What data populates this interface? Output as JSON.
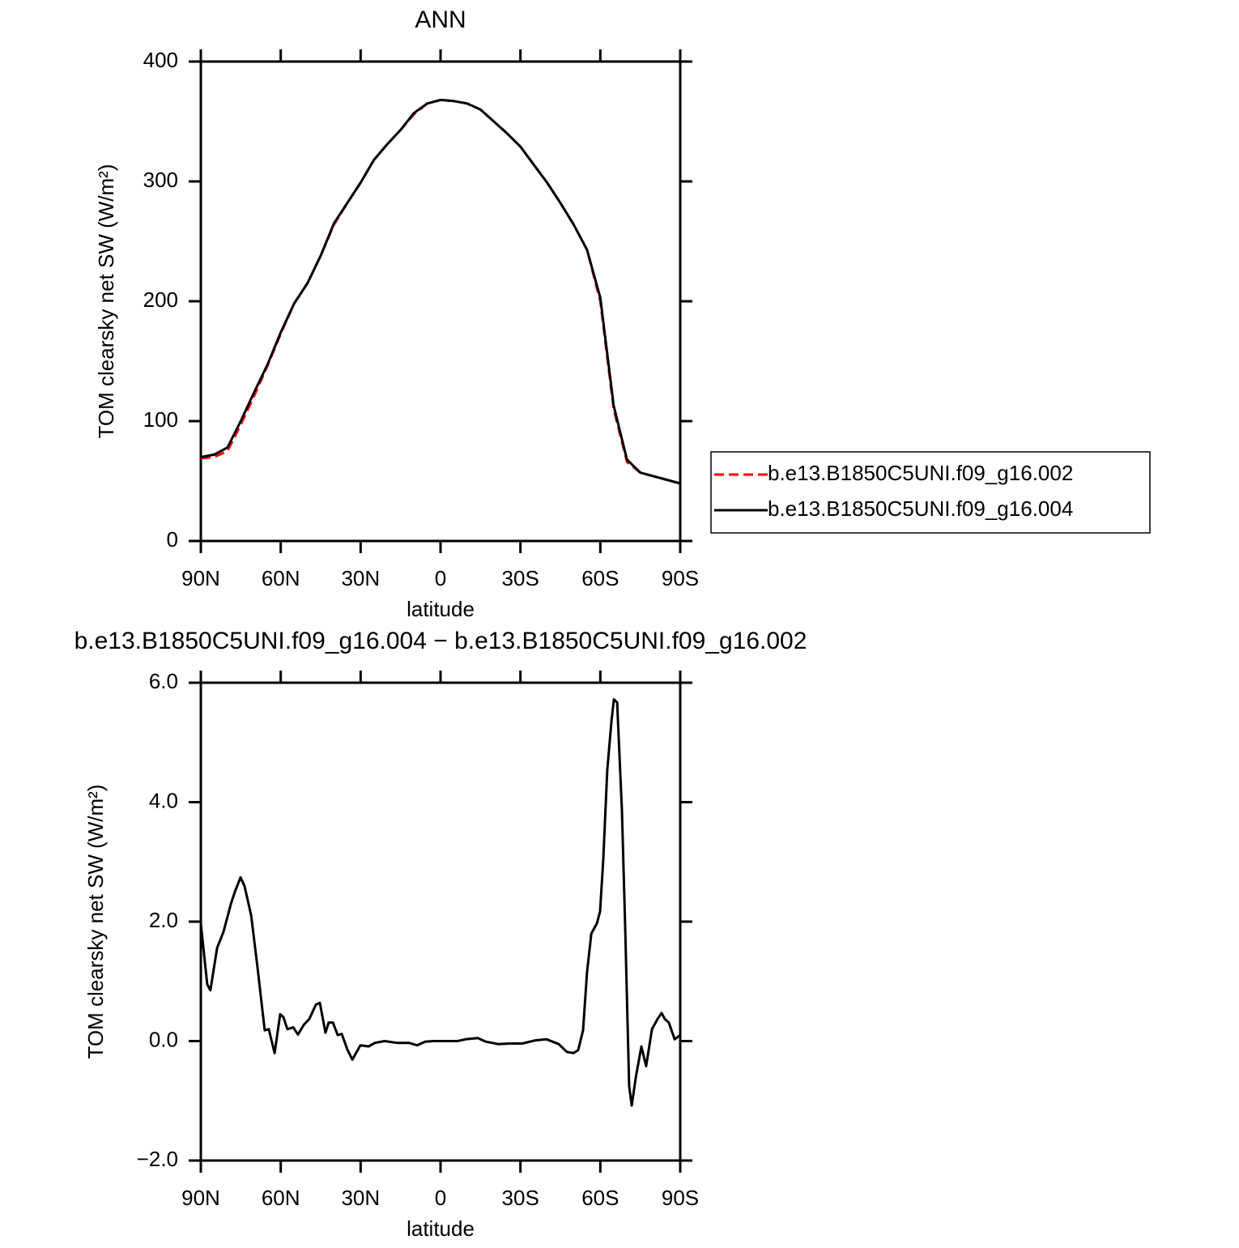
{
  "chart_data": [
    {
      "type": "line",
      "title": "ANN",
      "xlabel": "latitude",
      "ylabel": "TOM clearsky net SW (W/m²)",
      "x": [
        90,
        85,
        80,
        75,
        70,
        65,
        60,
        55,
        50,
        45,
        40,
        35,
        30,
        25,
        20,
        15,
        10,
        5,
        0,
        -5,
        -10,
        -15,
        -20,
        -25,
        -30,
        -35,
        -40,
        -45,
        -50,
        -55,
        -60,
        -65,
        -70,
        -75,
        -80,
        -85,
        -90
      ],
      "series": [
        {
          "name": "b.e13.B1850C5UNI.f09_g16.002",
          "color": "#ff0000",
          "dashed": true,
          "values": [
            69,
            70,
            75,
            97,
            121,
            146,
            173,
            198,
            215,
            238,
            264,
            282,
            299,
            318,
            331,
            343,
            356,
            365,
            368,
            367,
            365,
            360,
            350,
            340,
            329,
            314,
            299,
            282,
            264,
            243,
            200,
            110,
            66,
            57,
            54,
            51,
            48
          ]
        },
        {
          "name": "b.e13.B1850C5UNI.f09_g16.004",
          "color": "#000000",
          "dashed": false,
          "values": [
            70,
            72,
            78,
            100,
            124,
            147,
            174,
            198,
            215,
            238,
            265,
            282,
            299,
            318,
            331,
            343,
            357,
            365,
            368,
            367,
            365,
            360,
            350,
            340,
            329,
            314,
            299,
            282,
            264,
            243,
            203,
            113,
            68,
            57,
            54,
            51,
            48
          ]
        }
      ],
      "xlim": [
        90,
        -90
      ],
      "ylim": [
        0,
        400
      ],
      "xticks": [
        {
          "value": 90,
          "label": "90N"
        },
        {
          "value": 60,
          "label": "60N"
        },
        {
          "value": 30,
          "label": "30N"
        },
        0,
        {
          "value": -30,
          "label": "30S"
        },
        {
          "value": -60,
          "label": "60S"
        },
        {
          "value": -90,
          "label": "90S"
        }
      ],
      "yticks": [
        0,
        100,
        200,
        300,
        400
      ],
      "legend": "right"
    },
    {
      "type": "line",
      "title": "b.e13.B1850C5UNI.f09_g16.004 − b.e13.B1850C5UNI.f09_g16.002",
      "xlabel": "latitude",
      "ylabel": "TOM clearsky net SW (W/m²)",
      "x": [
        90,
        87.6,
        86.4,
        83.9,
        81.5,
        78.7,
        77.2,
        75.1,
        73.6,
        71.1,
        68.7,
        66,
        64.5,
        62.3,
        60.2,
        59,
        57.5,
        55.3,
        53.5,
        51.4,
        49.3,
        46.8,
        45.3,
        43.2,
        42,
        40.4,
        38.6,
        37.1,
        35,
        33.1,
        30.1,
        27,
        24.6,
        21,
        16.4,
        11.9,
        8.8,
        5.8,
        2.7,
        -1.8,
        -6.4,
        -9.4,
        -14,
        -17,
        -21.6,
        -26.1,
        -30.7,
        -35.3,
        -39.8,
        -44.4,
        -47.4,
        -49.9,
        -51.7,
        -53.5,
        -55,
        -56.6,
        -58.7,
        -59.9,
        -61.1,
        -62.6,
        -64.2,
        -65.1,
        -66.3,
        -68.1,
        -69.3,
        -70.8,
        -71.8,
        -73.3,
        -75.4,
        -77.2,
        -79.4,
        -81.5,
        -83,
        -84.2,
        -85.7,
        -87.9,
        -90
      ],
      "series": [
        {
          "name": null,
          "color": "#000000",
          "dashed": false,
          "values": [
            1.97,
            0.95,
            0.85,
            1.56,
            1.83,
            2.3,
            2.5,
            2.74,
            2.6,
            2.1,
            1.22,
            0.18,
            0.2,
            -0.2,
            0.45,
            0.4,
            0.2,
            0.23,
            0.11,
            0.27,
            0.37,
            0.61,
            0.64,
            0.14,
            0.31,
            0.31,
            0.1,
            0.12,
            -0.14,
            -0.31,
            -0.07,
            -0.09,
            -0.03,
            0,
            -0.03,
            -0.03,
            -0.07,
            -0.01,
            0,
            0,
            0,
            0.03,
            0.05,
            -0.01,
            -0.05,
            -0.04,
            -0.04,
            0.01,
            0.03,
            -0.05,
            -0.18,
            -0.2,
            -0.15,
            0.18,
            1.15,
            1.8,
            1.97,
            2.17,
            3.05,
            4.54,
            5.36,
            5.72,
            5.67,
            3.86,
            1.97,
            -0.75,
            -1.08,
            -0.61,
            -0.09,
            -0.42,
            0.2,
            0.37,
            0.47,
            0.37,
            0.31,
            0.03,
            0.1
          ]
        }
      ],
      "xlim": [
        90,
        -90
      ],
      "ylim": [
        -2,
        6
      ],
      "xticks": [
        {
          "value": 90,
          "label": "90N"
        },
        {
          "value": 60,
          "label": "60N"
        },
        {
          "value": 30,
          "label": "30N"
        },
        0,
        {
          "value": -30,
          "label": "30S"
        },
        {
          "value": -60,
          "label": "60S"
        },
        {
          "value": -90,
          "label": "90S"
        }
      ],
      "yticks": [
        {
          "value": -2,
          "label": "−2.0"
        },
        {
          "value": 0,
          "label": "0.0"
        },
        {
          "value": 2,
          "label": "2.0"
        },
        {
          "value": 4,
          "label": "4.0"
        },
        {
          "value": 6,
          "label": "6.0"
        }
      ]
    }
  ]
}
